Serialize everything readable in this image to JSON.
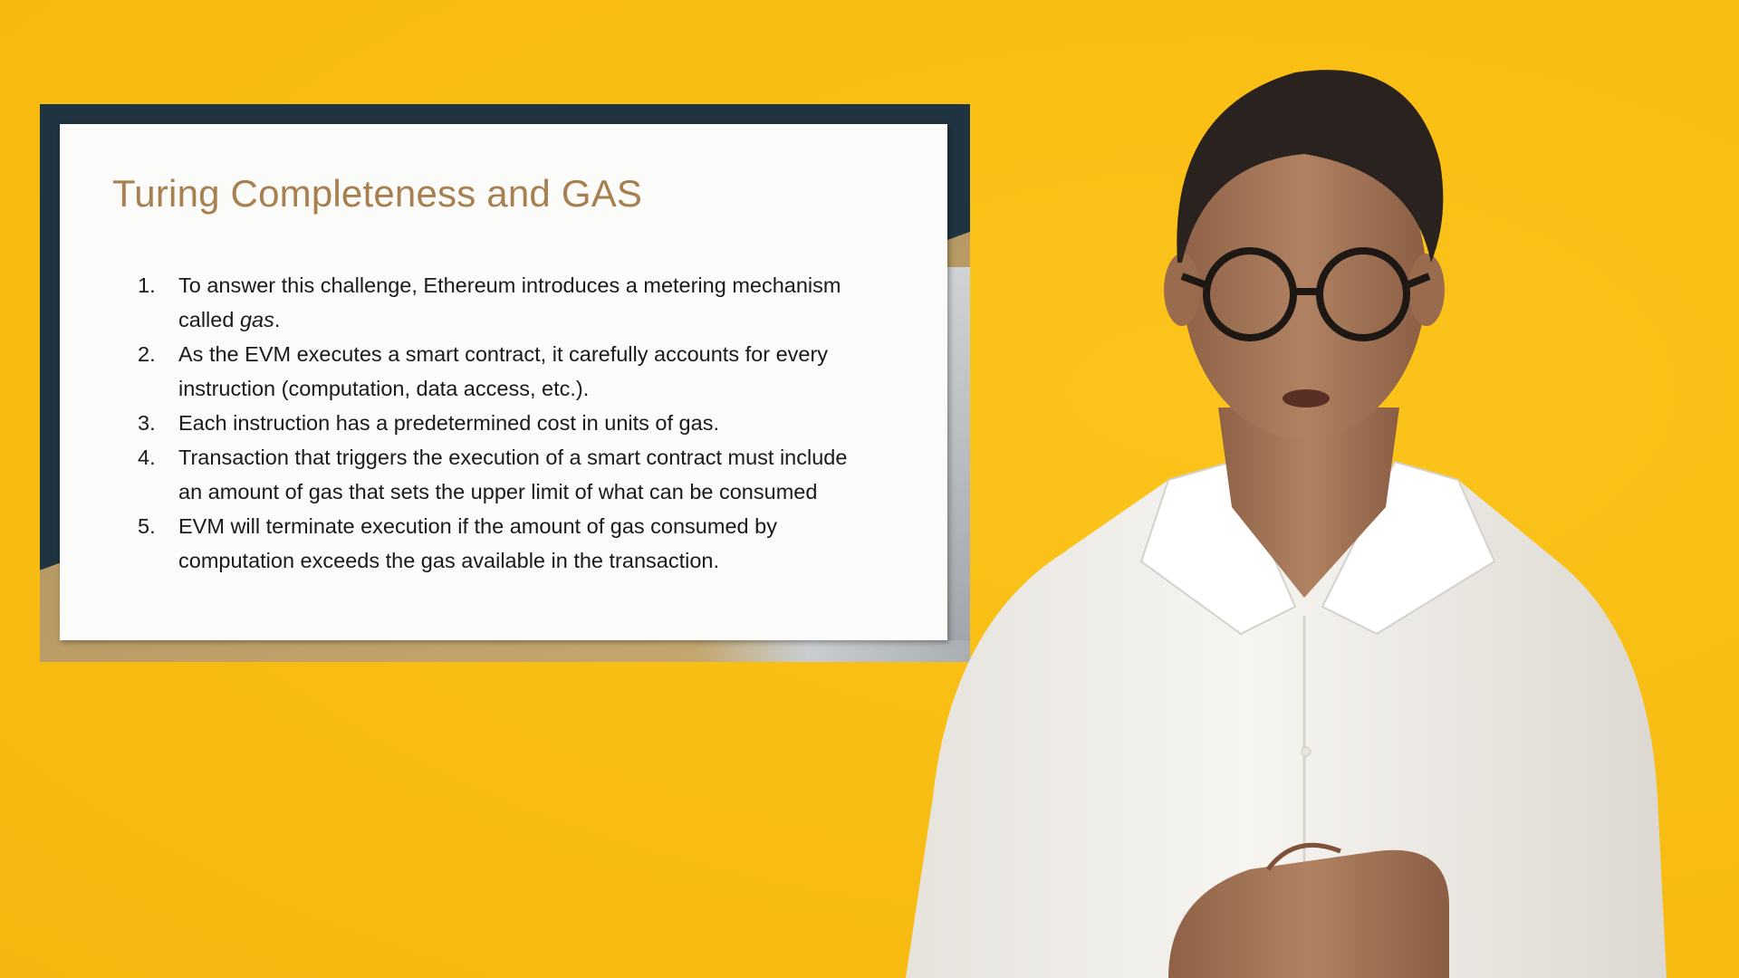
{
  "slide": {
    "title": "Turing Completeness and GAS",
    "items": [
      {
        "number": "1.",
        "lines": [
          "To answer this challenge, Ethereum introduces a metering mechanism",
          "called "
        ],
        "italic_word": "gas",
        "suffix": "."
      },
      {
        "number": "2.",
        "lines": [
          "As the EVM executes a smart contract, it carefully accounts for every",
          "instruction (computation, data access, etc.)."
        ]
      },
      {
        "number": "3.",
        "lines": [
          "Each instruction has a predetermined cost in units of gas."
        ]
      },
      {
        "number": "4.",
        "lines": [
          "Transaction that triggers the execution of a smart contract must include",
          "an amount of gas that sets the upper limit of what can be consumed"
        ]
      },
      {
        "number": "5.",
        "lines": [
          "EVM will terminate execution if the amount of gas consumed by",
          "computation exceeds the gas available in the transaction."
        ]
      }
    ]
  },
  "colors": {
    "background": "#f9c014",
    "slide_frame": "#1f3440",
    "slide_accent": "#b79a63",
    "title": "#a8804f",
    "body_text": "#1a1a1a",
    "shirt": "#f4f2ee",
    "skin": "#a97858",
    "hair": "#2a221e"
  },
  "presenter": {
    "description_icon": "presenter-person"
  }
}
